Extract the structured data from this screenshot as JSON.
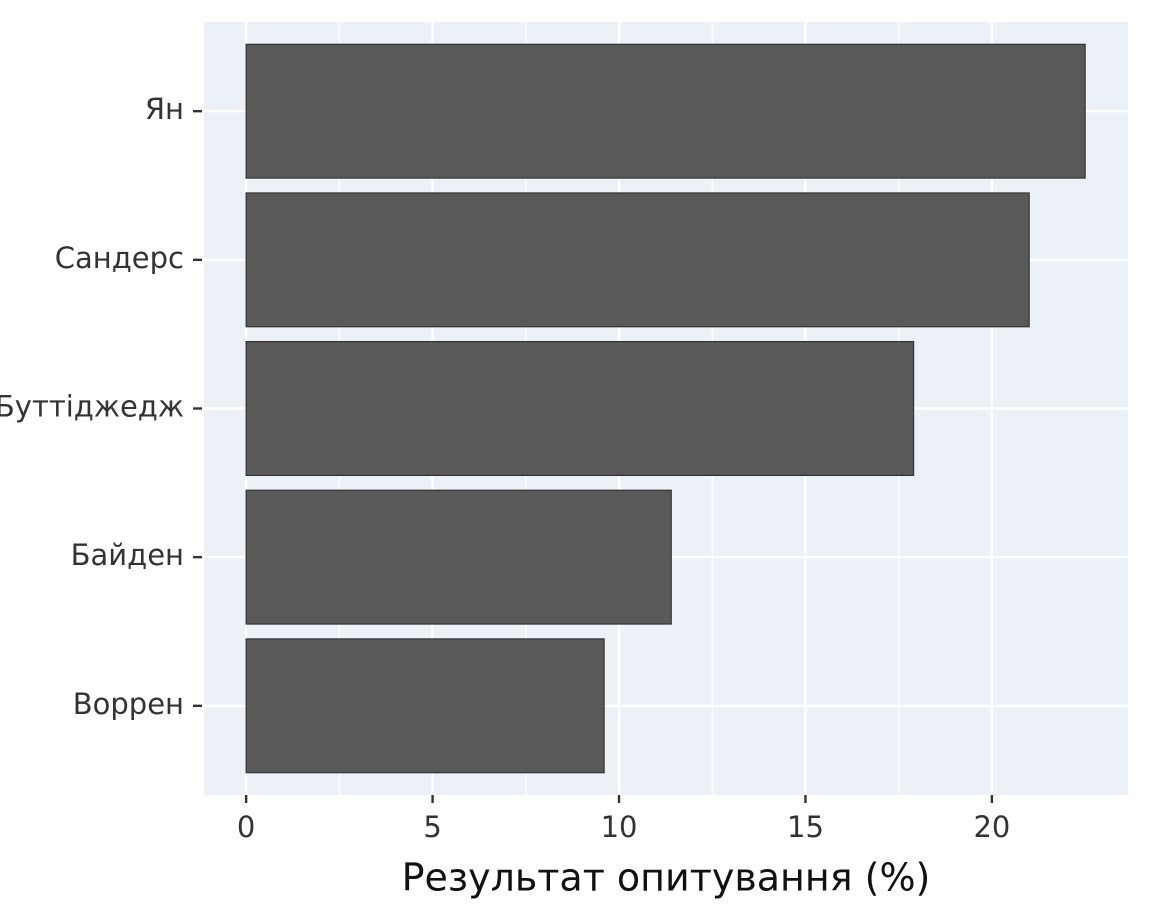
{
  "chart_data": {
    "type": "barh",
    "x_label": "Результат опитування (%)",
    "categories": [
      "Ян",
      "Сандерс",
      "Буттіджедж",
      "Байден",
      "Воррен"
    ],
    "values": [
      22.5,
      21.0,
      17.9,
      11.4,
      9.6
    ],
    "color": "#595959",
    "xlim": [
      -1.13,
      23.65
    ],
    "xticks": [
      0,
      5,
      10,
      15,
      20
    ],
    "grid": true
  }
}
